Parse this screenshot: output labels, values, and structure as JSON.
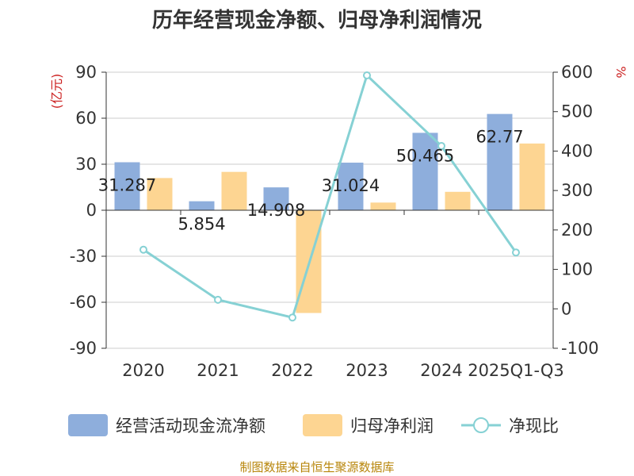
{
  "title": "历年经营现金净额、归母净利润情况",
  "source": "制图数据来自恒生聚源数据库",
  "colors": {
    "cash": "#8eaedc",
    "profit": "#fdd592",
    "ratio": "#86d1d4",
    "axis": "#333333",
    "grid": "#cccccc",
    "unit": "#cc2222"
  },
  "chart_data": {
    "type": "bar+line",
    "categories": [
      "2020",
      "2021",
      "2022",
      "2023",
      "2024",
      "2025Q1-Q3"
    ],
    "series": [
      {
        "name": "经营活动现金流净额",
        "type": "bar",
        "axis": "left",
        "values": [
          31.287,
          5.854,
          14.908,
          31.024,
          50.465,
          62.77
        ],
        "labels": [
          "31.287",
          "5.854",
          "14.908",
          "31.024",
          "50.465",
          "62.77"
        ]
      },
      {
        "name": "归母净利润",
        "type": "bar",
        "axis": "left",
        "values": [
          21,
          25,
          -67,
          5,
          12,
          43.5
        ]
      },
      {
        "name": "净现比",
        "type": "line",
        "axis": "right",
        "values": [
          150,
          23,
          -22,
          592,
          413,
          143
        ]
      }
    ],
    "left_axis": {
      "unit": "(亿元)",
      "min": -90,
      "max": 90,
      "ticks": [
        "90",
        "60",
        "30",
        "0",
        "-30",
        "-60",
        "-90"
      ]
    },
    "right_axis": {
      "unit": "%",
      "min": -100,
      "max": 600,
      "ticks": [
        "600",
        "500",
        "400",
        "300",
        "200",
        "100",
        "0",
        "-100"
      ]
    },
    "grid": true,
    "legend": "bottom"
  }
}
